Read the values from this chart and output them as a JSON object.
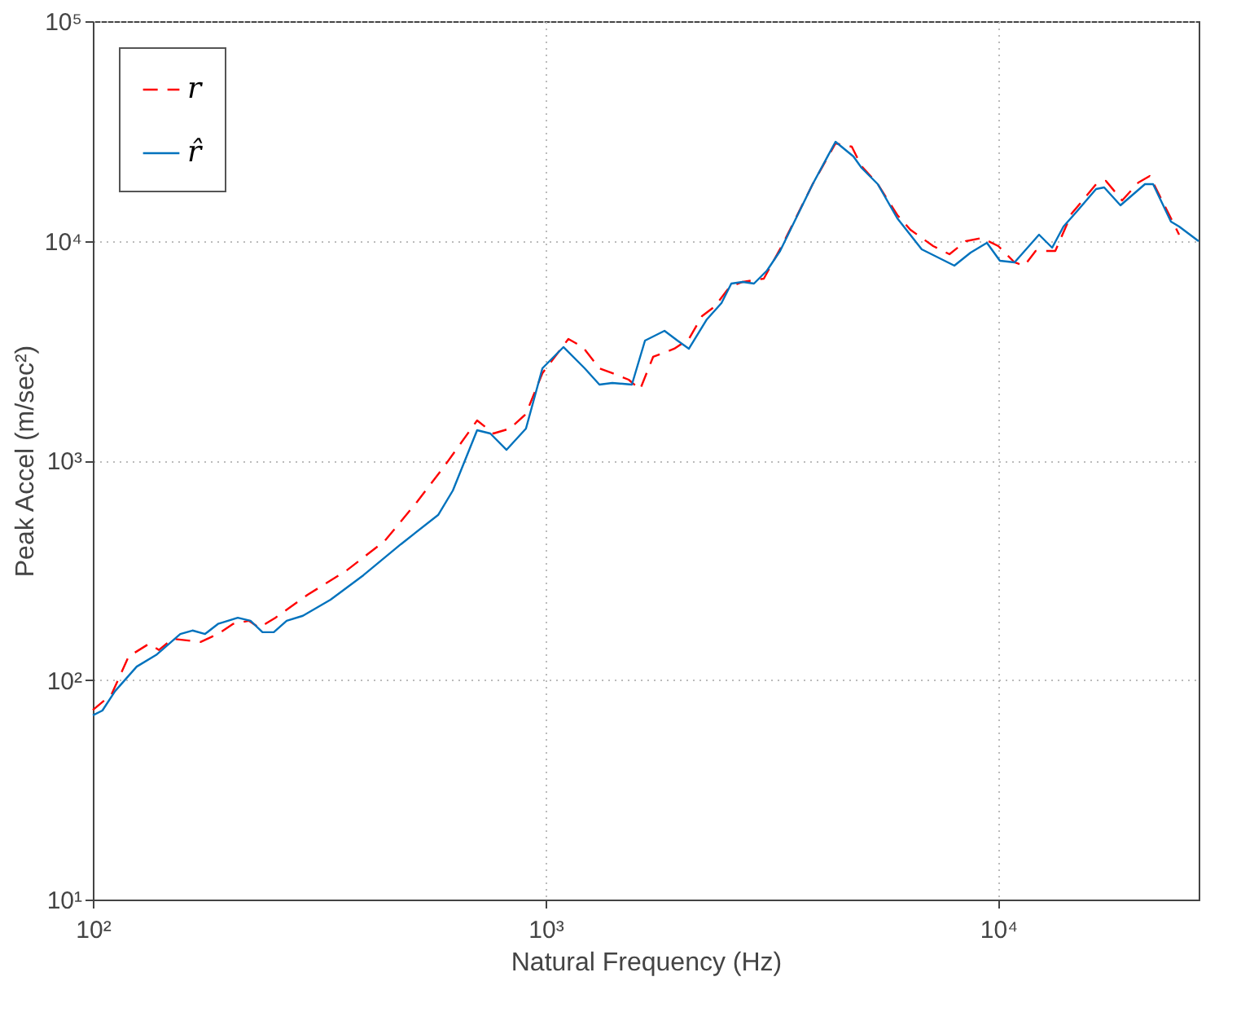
{
  "chart_data": {
    "type": "line",
    "xlabel": "Natural Frequency (Hz)",
    "ylabel": "Peak Accel (m/sec²)",
    "log": "xy",
    "grid": true,
    "legend": "top left",
    "xlim": [
      100,
      27700
    ],
    "ylim": [
      10,
      100000
    ],
    "xticks": [
      {
        "value": 100,
        "label": "10²"
      },
      {
        "value": 1000,
        "label": "10³"
      },
      {
        "value": 10000,
        "label": "10⁴"
      }
    ],
    "yticks": [
      {
        "value": 10,
        "label": "10¹"
      },
      {
        "value": 100,
        "label": "10²"
      },
      {
        "value": 1000,
        "label": "10³"
      },
      {
        "value": 10000,
        "label": "10⁴"
      },
      {
        "value": 100000,
        "label": "10⁵"
      }
    ],
    "series": [
      {
        "name": "r",
        "color": "#ff0000",
        "line_style": "dashed",
        "x": [
          100,
          110,
          120,
          133,
          140,
          150,
          173,
          189,
          204,
          221,
          233,
          253,
          298,
          364,
          441,
          520,
          598,
          706,
          767,
          834,
          905,
          984,
          1123,
          1209,
          1315,
          1404,
          1526,
          1617,
          1728,
          1924,
          2073,
          2215,
          2366,
          2550,
          2725,
          3034,
          3352,
          3890,
          4369,
          4746,
          4988,
          5417,
          5984,
          6395,
          7181,
          7800,
          8476,
          9204,
          10000,
          10860,
          11420,
          12090,
          13360,
          14520,
          15260,
          16440,
          17280,
          18770,
          20390,
          21600,
          23470,
          25080
        ],
        "values": [
          73,
          86,
          128,
          146,
          137,
          154,
          149,
          162,
          180,
          186,
          173,
          192,
          244,
          316,
          429,
          647,
          942,
          1520,
          1326,
          1395,
          1627,
          2495,
          3572,
          3280,
          2626,
          2495,
          2330,
          2103,
          2960,
          3224,
          3572,
          4538,
          5026,
          6172,
          6496,
          6722,
          9788,
          18110,
          27760,
          26830,
          21850,
          18110,
          13090,
          11220,
          9461,
          8687,
          9957,
          10300,
          9461,
          7975,
          7705,
          8986,
          8986,
          13310,
          15010,
          18110,
          18740,
          15270,
          18420,
          19720,
          14020,
          10660
        ]
      },
      {
        "name": "r̂",
        "color": "#0072bd",
        "line_style": "solid",
        "x": [
          100,
          105,
          112,
          125,
          138,
          156,
          166,
          177,
          189,
          209,
          223,
          237,
          251,
          268,
          291,
          335,
          396,
          479,
          579,
          624,
          706,
          755,
          820,
          905,
          984,
          1095,
          1220,
          1315,
          1404,
          1551,
          1658,
          1831,
          1956,
          2073,
          2271,
          2446,
          2572,
          2725,
          2886,
          3084,
          3296,
          3890,
          4369,
          4786,
          4988,
          5417,
          5984,
          6774,
          7996,
          8687,
          9437,
          10080,
          10860,
          12300,
          13150,
          13930,
          14880,
          16440,
          17130,
          18610,
          21080,
          21970,
          24060,
          25080,
          27700
        ],
        "values": [
          69,
          72.6,
          89,
          115,
          130,
          162,
          168,
          162,
          180,
          192,
          186,
          165,
          165,
          186,
          196,
          232,
          300,
          415,
          564,
          729,
          1372,
          1326,
          1117,
          1395,
          2626,
          3280,
          2626,
          2214,
          2252,
          2214,
          3512,
          3890,
          3512,
          3224,
          4385,
          5201,
          6386,
          6496,
          6386,
          7320,
          8986,
          18110,
          28240,
          24210,
          21480,
          18110,
          12650,
          9141,
          7705,
          8836,
          9788,
          8111,
          7975,
          10660,
          9300,
          11610,
          13540,
          17200,
          17500,
          14500,
          18110,
          18110,
          12230,
          11610,
          9957
        ]
      }
    ]
  }
}
